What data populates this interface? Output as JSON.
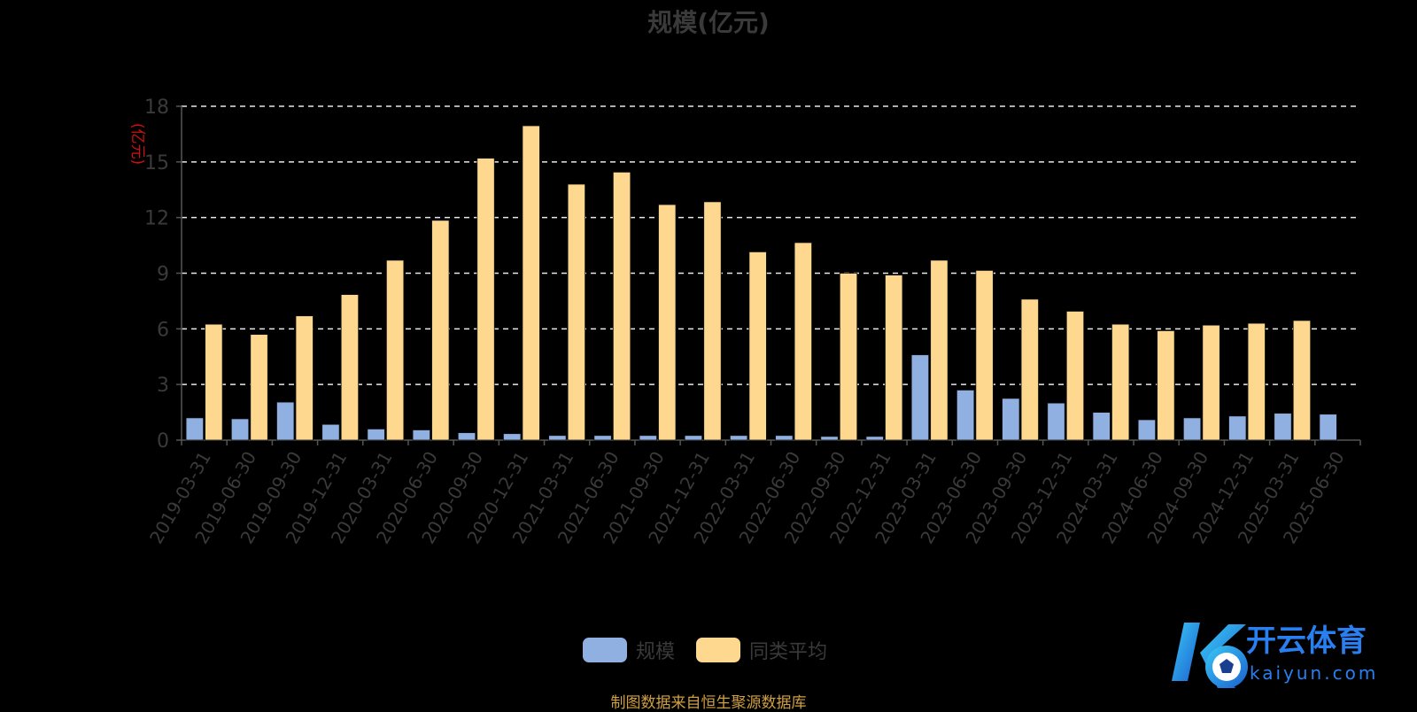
{
  "chart_data": {
    "type": "bar",
    "title": "规模(亿元)",
    "ylabel": "(亿元)",
    "ylim": [
      0,
      18
    ],
    "yticks": [
      0,
      3,
      6,
      9,
      12,
      15,
      18
    ],
    "grid": true,
    "legend_position": "bottom",
    "categories": [
      "2019-03-31",
      "2019-06-30",
      "2019-09-30",
      "2019-12-31",
      "2020-03-31",
      "2020-06-30",
      "2020-09-30",
      "2020-12-31",
      "2021-03-31",
      "2021-06-30",
      "2021-09-30",
      "2021-12-31",
      "2022-03-31",
      "2022-06-30",
      "2022-09-30",
      "2022-12-31",
      "2023-03-31",
      "2023-06-30",
      "2023-09-30",
      "2023-12-31",
      "2024-03-31",
      "2024-06-30",
      "2024-09-30",
      "2024-12-31",
      "2025-03-31",
      "2025-06-30"
    ],
    "series": [
      {
        "name": "规模",
        "color": "#8fb0e0",
        "values": [
          1.2,
          1.15,
          2.05,
          0.85,
          0.6,
          0.55,
          0.4,
          0.35,
          0.25,
          0.25,
          0.25,
          0.25,
          0.25,
          0.25,
          0.2,
          0.2,
          4.6,
          2.7,
          2.25,
          2.0,
          1.5,
          1.1,
          1.2,
          1.3,
          1.45,
          1.4
        ]
      },
      {
        "name": "同类平均",
        "color": "#ffd890",
        "values": [
          6.25,
          5.7,
          6.7,
          7.85,
          9.7,
          11.85,
          15.2,
          16.95,
          13.8,
          14.45,
          12.7,
          12.85,
          10.15,
          10.65,
          9.0,
          8.9,
          9.7,
          9.15,
          7.6,
          6.95,
          6.25,
          5.9,
          6.2,
          6.3,
          6.45,
          null
        ]
      }
    ]
  },
  "footer": {
    "source": "制图数据来自恒生聚源数据库"
  },
  "logo": {
    "name": "开云体育",
    "domain": "kaiyun.com"
  }
}
